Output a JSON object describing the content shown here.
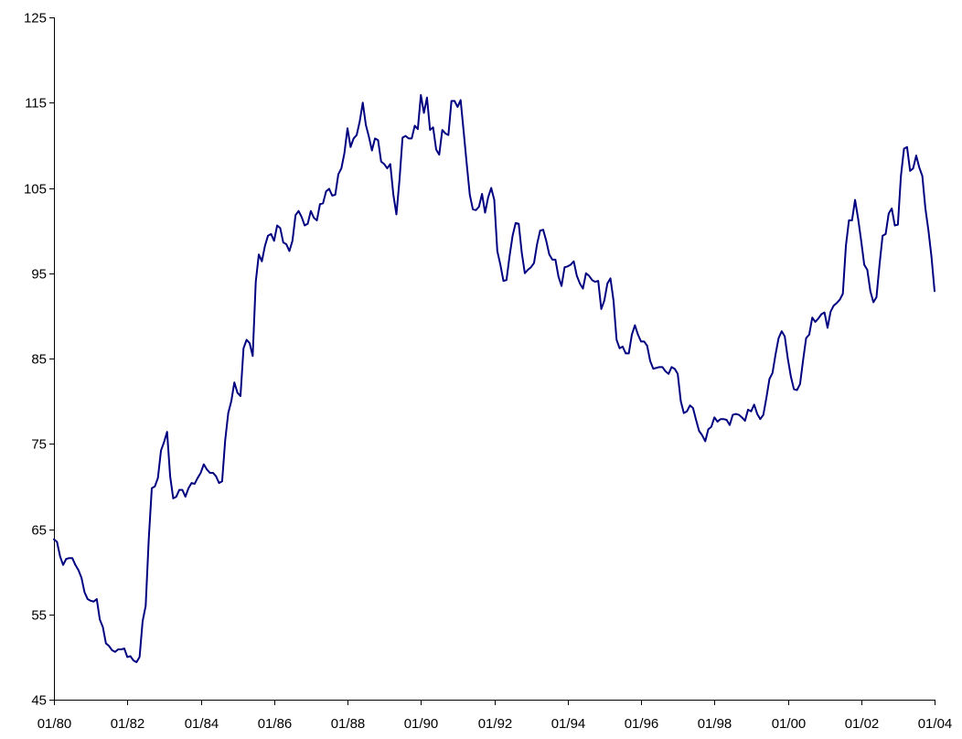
{
  "chart_data": {
    "type": "line",
    "title": "",
    "xlabel": "",
    "ylabel": "",
    "ylim": [
      45,
      125
    ],
    "y_ticks": [
      "45",
      "55",
      "65",
      "75",
      "85",
      "95",
      "105",
      "115",
      "125"
    ],
    "x_ticks": [
      "01/80",
      "01/82",
      "01/84",
      "01/86",
      "01/88",
      "01/90",
      "01/92",
      "01/94",
      "01/96",
      "01/98",
      "01/00",
      "01/02",
      "01/04"
    ],
    "grid": false,
    "legend": "none",
    "line_color": "#000080",
    "series": [
      {
        "x": [
          "1980-01",
          "1980-02",
          "1980-03",
          "1980-04",
          "1980-05",
          "1980-06",
          "1980-07",
          "1980-08",
          "1980-09",
          "1980-10",
          "1980-11",
          "1980-12",
          "1981-01",
          "1981-02",
          "1981-03",
          "1981-04",
          "1981-05",
          "1981-06",
          "1981-07",
          "1981-08",
          "1981-09",
          "1981-10",
          "1981-11",
          "1981-12",
          "1982-01",
          "1982-02",
          "1982-03",
          "1982-04",
          "1982-05",
          "1982-06",
          "1982-07",
          "1982-08",
          "1982-09",
          "1982-10",
          "1982-11",
          "1982-12",
          "1983-01",
          "1983-02",
          "1983-03",
          "1983-04",
          "1983-05",
          "1983-06",
          "1983-07",
          "1983-08",
          "1983-09",
          "1983-10",
          "1983-11",
          "1983-12",
          "1984-01",
          "1984-02",
          "1984-03",
          "1984-04",
          "1984-05",
          "1984-06",
          "1984-07",
          "1984-08",
          "1984-09",
          "1984-10",
          "1984-11",
          "1984-12",
          "1985-01",
          "1985-02",
          "1985-03",
          "1985-04",
          "1985-05",
          "1985-06",
          "1985-07",
          "1985-08",
          "1985-09",
          "1985-10",
          "1985-11",
          "1985-12",
          "1986-01",
          "1986-02",
          "1986-03",
          "1986-04",
          "1986-05",
          "1986-06",
          "1986-07",
          "1986-08",
          "1986-09",
          "1986-10",
          "1986-11",
          "1986-12",
          "1987-01",
          "1987-02",
          "1987-03",
          "1987-04",
          "1987-05",
          "1987-06",
          "1987-07",
          "1987-08",
          "1987-09",
          "1987-10",
          "1987-11",
          "1987-12",
          "1988-01",
          "1988-02",
          "1988-03",
          "1988-04",
          "1988-05",
          "1988-06",
          "1988-07",
          "1988-08",
          "1988-09",
          "1988-10",
          "1988-11",
          "1988-12",
          "1989-01",
          "1989-02",
          "1989-03",
          "1989-04",
          "1989-05",
          "1989-06",
          "1989-07",
          "1989-08",
          "1989-09",
          "1989-10",
          "1989-11",
          "1989-12",
          "1990-01",
          "1990-02",
          "1990-03",
          "1990-04",
          "1990-05",
          "1990-06",
          "1990-07",
          "1990-08",
          "1990-09",
          "1990-10",
          "1990-11",
          "1990-12",
          "1991-01",
          "1991-02",
          "1991-03",
          "1991-04",
          "1991-05",
          "1991-06",
          "1991-07",
          "1991-08",
          "1991-09",
          "1991-10",
          "1991-11",
          "1991-12",
          "1992-01",
          "1992-02",
          "1992-03",
          "1992-04",
          "1992-05",
          "1992-06",
          "1992-07",
          "1992-08",
          "1992-09",
          "1992-10",
          "1992-11",
          "1992-12",
          "1993-01",
          "1993-02",
          "1993-03",
          "1993-04",
          "1993-05",
          "1993-06",
          "1993-07",
          "1993-08",
          "1993-09",
          "1993-10",
          "1993-11",
          "1993-12",
          "1994-01",
          "1994-02",
          "1994-03",
          "1994-04",
          "1994-05",
          "1994-06",
          "1994-07",
          "1994-08",
          "1994-09",
          "1994-10",
          "1994-11",
          "1994-12",
          "1995-01",
          "1995-02",
          "1995-03",
          "1995-04",
          "1995-05",
          "1995-06",
          "1995-07",
          "1995-08",
          "1995-09",
          "1995-10",
          "1995-11",
          "1995-12",
          "1996-01",
          "1996-02",
          "1996-03",
          "1996-04",
          "1996-05",
          "1996-06",
          "1996-07",
          "1996-08",
          "1996-09",
          "1996-10",
          "1996-11",
          "1996-12",
          "1997-01",
          "1997-02",
          "1997-03",
          "1997-04",
          "1997-05",
          "1997-06",
          "1997-07",
          "1997-08",
          "1997-09",
          "1997-10",
          "1997-11",
          "1997-12",
          "1998-01",
          "1998-02",
          "1998-03",
          "1998-04",
          "1998-05",
          "1998-06",
          "1998-07",
          "1998-08",
          "1998-09",
          "1998-10",
          "1998-11",
          "1998-12",
          "1999-01",
          "1999-02",
          "1999-03",
          "1999-04",
          "1999-05",
          "1999-06",
          "1999-07",
          "1999-08",
          "1999-09",
          "1999-10",
          "1999-11",
          "1999-12",
          "2000-01",
          "2000-02",
          "2000-03",
          "2000-04",
          "2000-05",
          "2000-06",
          "2000-07",
          "2000-08",
          "2000-09",
          "2000-10",
          "2000-11",
          "2000-12",
          "2001-01",
          "2001-02",
          "2001-03",
          "2001-04",
          "2001-05",
          "2001-06",
          "2001-07",
          "2001-08",
          "2001-09",
          "2001-10",
          "2001-11",
          "2001-12",
          "2002-01",
          "2002-02",
          "2002-03",
          "2002-04",
          "2002-05",
          "2002-06",
          "2002-07",
          "2002-08",
          "2002-09",
          "2002-10",
          "2002-11",
          "2002-12",
          "2003-01",
          "2003-02",
          "2003-03",
          "2003-04",
          "2003-05",
          "2003-06",
          "2003-07",
          "2003-08",
          "2003-09",
          "2003-10",
          "2003-11",
          "2003-12",
          "2004-01"
        ],
        "values": [
          63.8,
          63.5,
          61.8,
          60.8,
          61.5,
          61.6,
          61.6,
          60.8,
          60.2,
          59.3,
          57.6,
          56.8,
          56.6,
          56.5,
          56.8,
          54.4,
          53.5,
          51.6,
          51.3,
          50.8,
          50.6,
          50.9,
          50.9,
          51.0,
          50.0,
          50.1,
          49.6,
          49.4,
          50.0,
          54.2,
          56.0,
          63.8,
          69.8,
          70.0,
          71.0,
          74.2,
          75.2,
          76.4,
          71.2,
          68.6,
          68.8,
          69.6,
          69.6,
          68.8,
          69.8,
          70.4,
          70.3,
          71.0,
          71.6,
          72.6,
          72.0,
          71.6,
          71.6,
          71.2,
          70.4,
          70.6,
          75.4,
          78.6,
          80.0,
          82.2,
          81.0,
          80.6,
          86.2,
          87.2,
          86.8,
          85.3,
          94.0,
          97.2,
          96.4,
          98.2,
          99.4,
          99.6,
          98.8,
          100.6,
          100.3,
          98.6,
          98.4,
          97.6,
          98.8,
          101.8,
          102.3,
          101.6,
          100.6,
          100.8,
          102.3,
          101.5,
          101.2,
          103.1,
          103.2,
          104.6,
          104.9,
          104.1,
          104.2,
          106.6,
          107.3,
          109.1,
          112.0,
          109.8,
          110.8,
          111.2,
          112.8,
          115.0,
          112.4,
          111.0,
          109.4,
          110.8,
          110.6,
          108.1,
          107.8,
          107.3,
          107.8,
          104.2,
          101.9,
          105.9,
          110.9,
          111.1,
          110.8,
          110.8,
          112.3,
          111.9,
          115.9,
          113.8,
          115.6,
          111.8,
          112.1,
          109.5,
          108.9,
          111.8,
          111.4,
          111.2,
          115.2,
          115.2,
          114.5,
          115.3,
          111.6,
          107.8,
          104.2,
          102.5,
          102.4,
          102.8,
          104.3,
          102.1,
          103.9,
          105.0,
          103.6,
          97.6,
          96.0,
          94.1,
          94.2,
          97.0,
          99.4,
          100.9,
          100.8,
          97.4,
          95.0,
          95.4,
          95.7,
          96.2,
          98.4,
          100.0,
          100.1,
          98.8,
          97.2,
          96.6,
          96.6,
          94.6,
          93.5,
          95.7,
          95.8,
          96.0,
          96.4,
          94.7,
          93.8,
          93.2,
          95.0,
          94.7,
          94.2,
          94.0,
          94.1,
          90.8,
          91.8,
          93.8,
          94.4,
          91.8,
          87.2,
          86.2,
          86.4,
          85.6,
          85.6,
          87.8,
          88.9,
          87.8,
          87.0,
          87.0,
          86.5,
          84.7,
          83.8,
          83.9,
          84.0,
          84.0,
          83.5,
          83.2,
          84.0,
          83.8,
          83.2,
          80.0,
          78.6,
          78.8,
          79.5,
          79.2,
          77.8,
          76.5,
          76.0,
          75.3,
          76.7,
          77.0,
          78.1,
          77.6,
          77.9,
          77.9,
          77.8,
          77.2,
          78.4,
          78.5,
          78.4,
          78.1,
          77.7,
          79.0,
          78.8,
          79.6,
          78.5,
          77.9,
          78.4,
          80.4,
          82.6,
          83.3,
          85.5,
          87.4,
          88.2,
          87.6,
          85.0,
          82.9,
          81.4,
          81.3,
          82.0,
          84.8,
          87.4,
          87.8,
          89.8,
          89.3,
          89.7,
          90.2,
          90.4,
          88.6,
          90.5,
          91.2,
          91.5,
          91.9,
          92.6,
          98.2,
          101.2,
          101.2,
          103.6,
          101.4,
          98.8,
          96.0,
          95.4,
          92.9,
          91.6,
          92.2,
          96.0,
          99.4,
          99.6,
          102.0,
          102.6,
          100.6,
          100.7,
          106.4,
          109.6,
          109.8,
          107.0,
          107.3,
          108.8,
          107.4,
          106.4,
          102.6,
          100.0,
          96.9,
          92.9
        ],
        "color": "#000080"
      }
    ]
  }
}
